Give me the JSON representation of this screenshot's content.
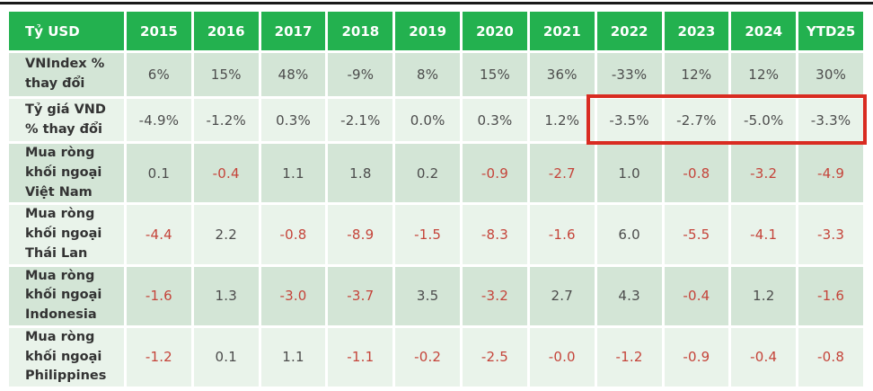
{
  "colors": {
    "header_bg": "#23b14f",
    "header_text": "#ffffff",
    "row_dark_bg": "#d3e5d6",
    "row_light_bg": "#e9f3ea",
    "label_text": "#333333",
    "value_text": "#4c4c4c",
    "negative_text": "#c5443a",
    "highlight_border": "#d92b21",
    "top_rule": "#1a1a1a"
  },
  "chart_data": {
    "type": "table",
    "unit_label": "Tỷ USD",
    "columns": [
      "2015",
      "2016",
      "2017",
      "2018",
      "2019",
      "2020",
      "2021",
      "2022",
      "2023",
      "2024",
      "YTD25"
    ],
    "rows": [
      {
        "label": "VNIndex %\nthay đổi",
        "type": "percent",
        "values": [
          "6%",
          "15%",
          "48%",
          "-9%",
          "8%",
          "15%",
          "36%",
          "-33%",
          "12%",
          "12%",
          "30%"
        ]
      },
      {
        "label": "Tỷ giá VND\n% thay đổi",
        "type": "percent",
        "values": [
          "-4.9%",
          "-1.2%",
          "0.3%",
          "-2.1%",
          "0.0%",
          "0.3%",
          "1.2%",
          "-3.5%",
          "-2.7%",
          "-5.0%",
          "-3.3%"
        ]
      },
      {
        "label": "Mua ròng\nkhối ngoại\nViệt Nam",
        "type": "flow",
        "values": [
          "0.1",
          "-0.4",
          "1.1",
          "1.8",
          "0.2",
          "-0.9",
          "-2.7",
          "1.0",
          "-0.8",
          "-3.2",
          "-4.9"
        ]
      },
      {
        "label": "Mua ròng\nkhối ngoại\nThái Lan",
        "type": "flow",
        "values": [
          "-4.4",
          "2.2",
          "-0.8",
          "-8.9",
          "-1.5",
          "-8.3",
          "-1.6",
          "6.0",
          "-5.5",
          "-4.1",
          "-3.3"
        ]
      },
      {
        "label": "Mua ròng\nkhối ngoại\nIndonesia",
        "type": "flow",
        "values": [
          "-1.6",
          "1.3",
          "-3.0",
          "-3.7",
          "3.5",
          "-3.2",
          "2.7",
          "4.3",
          "-0.4",
          "1.2",
          "-1.6"
        ]
      },
      {
        "label": "Mua ròng\nkhối ngoại\nPhilippines",
        "type": "flow",
        "values": [
          "-1.2",
          "0.1",
          "1.1",
          "-1.1",
          "-0.2",
          "-2.5",
          "-0.0",
          "-1.2",
          "-0.9",
          "-0.4",
          "-0.8"
        ]
      }
    ],
    "highlight": {
      "row_label": "Tỷ giá VND % thay đổi",
      "columns": [
        "2022",
        "2023",
        "2024",
        "YTD25"
      ]
    }
  }
}
